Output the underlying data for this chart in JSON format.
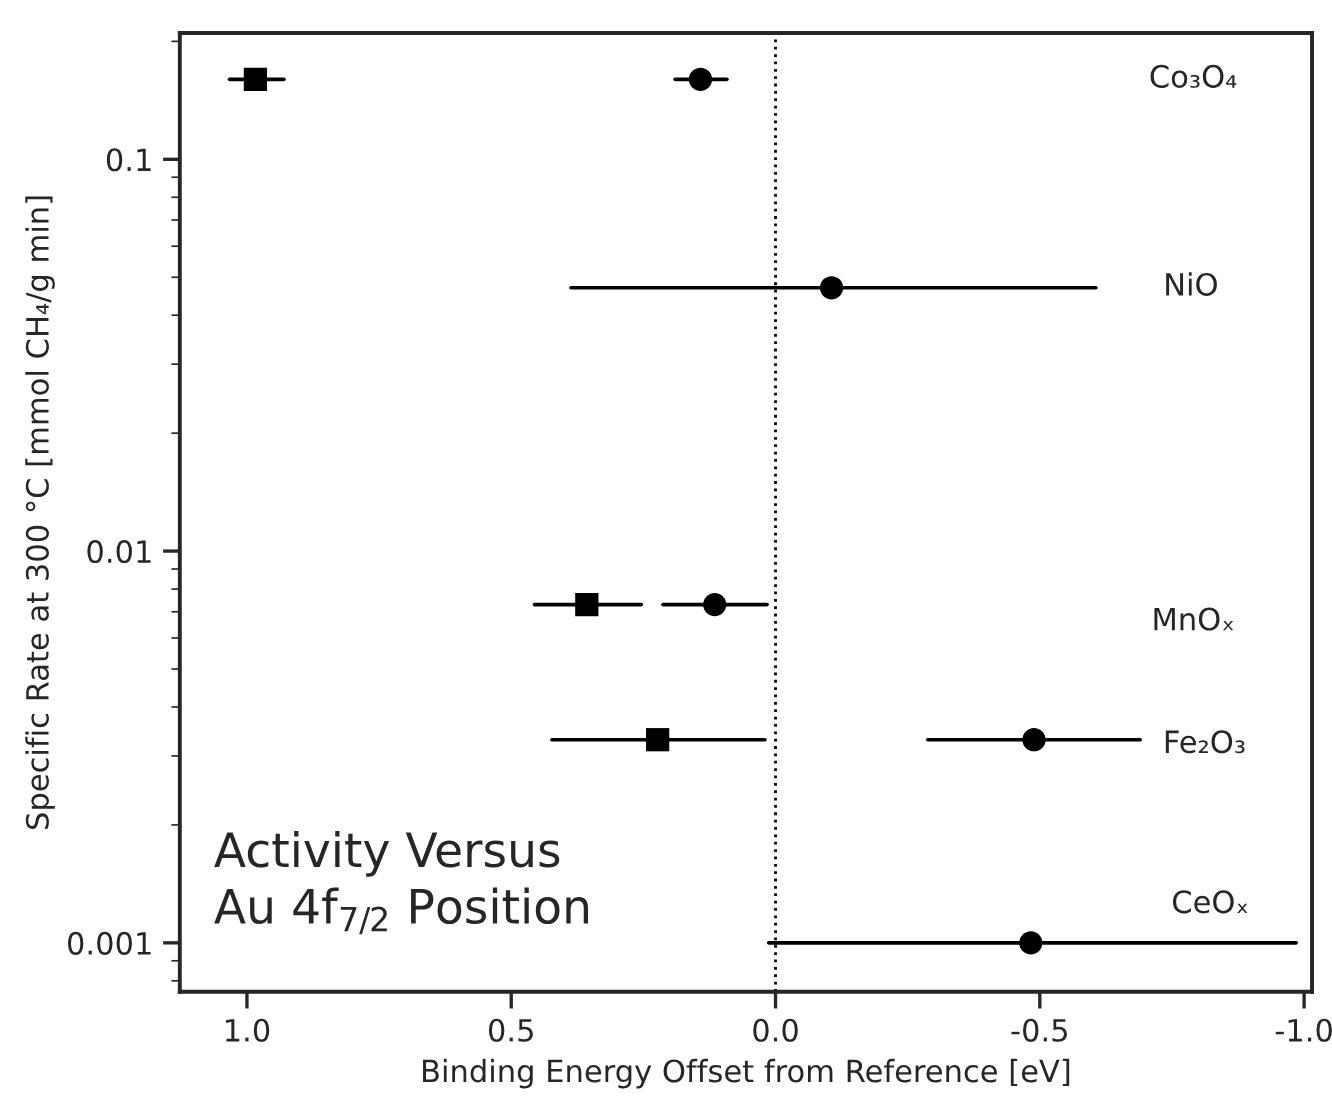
{
  "chart_data": {
    "type": "scatter",
    "xlabel": "Binding Energy Offset from Reference [eV]",
    "ylabel": "Specific Rate at 300 °C [mmol CH₄/g min]",
    "log": "y",
    "xlim": [
      1.127,
      -1.015
    ],
    "xticks": [
      {
        "value": 1.0,
        "label": "1.0"
      },
      {
        "value": 0.5,
        "label": "0.5"
      },
      {
        "value": 0.0,
        "label": "0.0"
      },
      {
        "value": -0.5,
        "label": "-0.5"
      },
      {
        "value": -1.0,
        "label": "-1.0"
      }
    ],
    "ylim": [
      0.00075,
      0.21
    ],
    "yticks": [
      {
        "value": 0.001,
        "label": "0.001"
      },
      {
        "value": 0.01,
        "label": "0.01"
      },
      {
        "value": 0.1,
        "label": "0.1"
      }
    ],
    "grid": false,
    "legend": false,
    "series": [
      {
        "color": "#000000",
        "marker": "square",
        "x": [
          0.984,
          0.357,
          0.223
        ],
        "values": [
          0.16,
          0.0073,
          0.0033
        ],
        "xerrors": [
          [
            1.033,
            0.93
          ],
          [
            0.456,
            0.254
          ],
          [
            0.423,
            0.02
          ]
        ]
      },
      {
        "color": "#000000",
        "marker": "circle",
        "x": [
          0.142,
          -0.106,
          0.115,
          -0.489,
          -0.483
        ],
        "values": [
          0.16,
          0.047,
          0.0073,
          0.0033,
          0.001
        ],
        "xerrors": [
          [
            0.19,
            0.092
          ],
          [
            0.387,
            -0.606
          ],
          [
            0.213,
            0.016
          ],
          [
            -0.288,
            -0.69
          ],
          [
            0.013,
            -0.985
          ]
        ]
      }
    ],
    "ref_lines": [
      {
        "axis": "x",
        "value": 0.0,
        "line_style": "dotted",
        "color": "#000000"
      }
    ],
    "annotations": [
      "Co₃O₄",
      "NiO",
      "MnOₓ",
      "Fe₂O₃",
      "CeOₓ",
      "Activity Versus\nAu 4f$_{7/2}$ Position"
    ]
  }
}
